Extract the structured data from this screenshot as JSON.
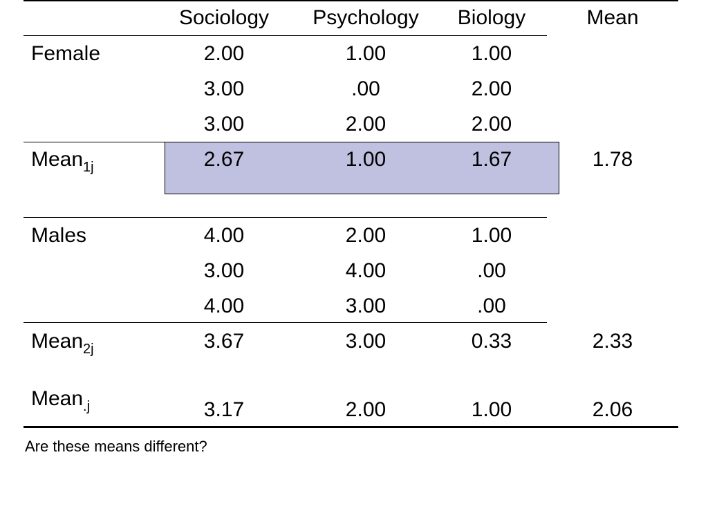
{
  "table": {
    "headers": {
      "col1": "Sociology",
      "col2": "Psychology",
      "col3": "Biology",
      "mean": "Mean"
    },
    "female": {
      "label": "Female",
      "rows": [
        [
          "2.00",
          "1.00",
          "1.00"
        ],
        [
          "3.00",
          ".00",
          "2.00"
        ],
        [
          "3.00",
          "2.00",
          "2.00"
        ]
      ],
      "mean_label": "Mean",
      "mean_subscript": "1j",
      "means": [
        "2.67",
        "1.00",
        "1.67"
      ],
      "overall_mean": "1.78"
    },
    "males": {
      "label": "Males",
      "rows": [
        [
          "4.00",
          "2.00",
          "1.00"
        ],
        [
          "3.00",
          "4.00",
          ".00"
        ],
        [
          "4.00",
          "3.00",
          ".00"
        ]
      ],
      "mean_label": "Mean",
      "mean_subscript": "2j",
      "means": [
        "3.67",
        "3.00",
        "0.33"
      ],
      "overall_mean": "2.33"
    },
    "column_mean": {
      "label": "Mean",
      "subscript": ".j",
      "means": [
        "3.17",
        "2.00",
        "1.00"
      ],
      "overall_mean": "2.06"
    }
  },
  "question": "Are these means different?",
  "colors": {
    "highlight": "#c0c0e0",
    "text": "#000000",
    "background": "#ffffff"
  }
}
